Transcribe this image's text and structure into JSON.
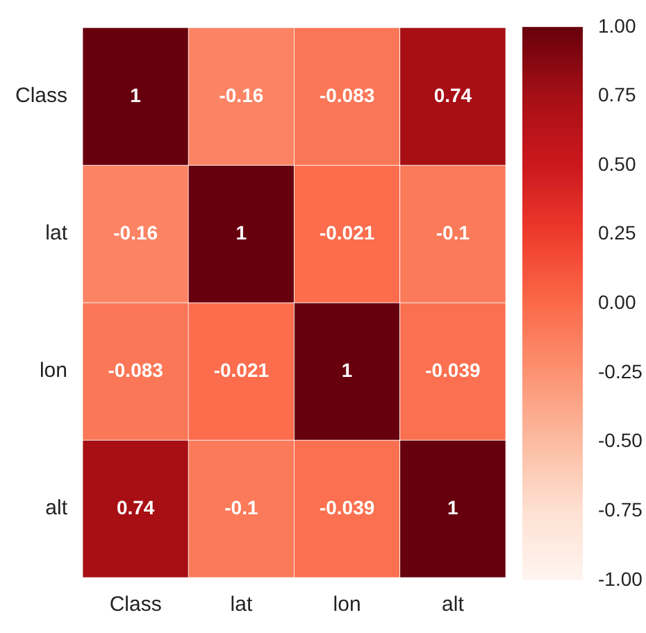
{
  "chart_data": {
    "type": "heatmap",
    "categories": [
      "Class",
      "lat",
      "lon",
      "alt"
    ],
    "y_categories": [
      "Class",
      "lat",
      "lon",
      "alt"
    ],
    "cells": [
      [
        1,
        -0.16,
        -0.083,
        0.74
      ],
      [
        -0.16,
        1,
        -0.021,
        -0.1
      ],
      [
        -0.083,
        -0.021,
        1,
        -0.039
      ],
      [
        0.74,
        -0.1,
        -0.039,
        1
      ]
    ],
    "data_labels": true,
    "clim": [
      -1,
      1
    ],
    "cticks": [
      {
        "value": -1,
        "label": "-1.00"
      },
      {
        "value": -0.75,
        "label": "-0.75"
      },
      {
        "value": -0.5,
        "label": "-0.50"
      },
      {
        "value": -0.25,
        "label": "-0.25"
      },
      {
        "value": 0,
        "label": "0.00"
      },
      {
        "value": 0.25,
        "label": "0.25"
      },
      {
        "value": 0.5,
        "label": "0.50"
      },
      {
        "value": 0.75,
        "label": "0.75"
      },
      {
        "value": 1,
        "label": "1.00"
      }
    ]
  }
}
